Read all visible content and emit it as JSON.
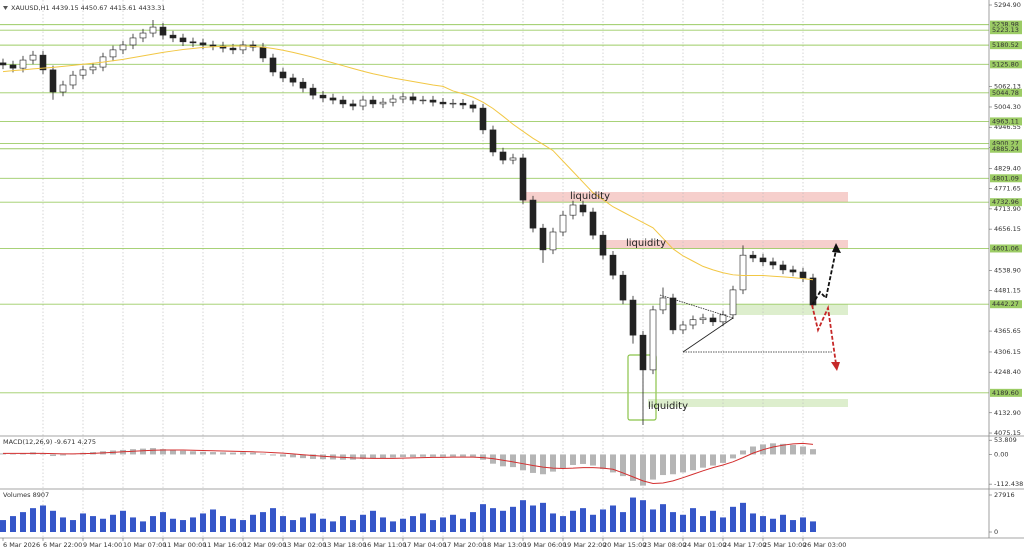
{
  "chart_data": [
    {
      "type": "candlestick",
      "title": "XAUUSD,H1  4439.15 4450.67 4415.61 4433.31",
      "categories": [
        "6 Mar 2026",
        null,
        null,
        null,
        "6 Mar 22:00",
        null,
        null,
        null,
        "9 Mar 14:00",
        null,
        null,
        null,
        "10 Mar 07:00",
        null,
        null,
        null,
        "11 Mar 00:00",
        null,
        null,
        null,
        "11 Mar 16:00",
        null,
        null,
        null,
        "12 Mar 09:00",
        null,
        null,
        null,
        "13 Mar 02:00",
        null,
        null,
        null,
        "13 Mar 18:00",
        null,
        null,
        null,
        "16 Mar 11:00",
        null,
        null,
        null,
        "17 Mar 04:00",
        null,
        null,
        null,
        "17 Mar 20:00",
        null,
        null,
        null,
        "18 Mar 13:00",
        null,
        null,
        null,
        "19 Mar 06:00",
        null,
        null,
        null,
        "19 Mar 22:00",
        null,
        null,
        null,
        "20 Mar 15:00",
        null,
        null,
        null,
        "23 Mar 08:00",
        null,
        null,
        null,
        "24 Mar 01:00",
        null,
        null,
        null,
        "24 Mar 17:00",
        null,
        null,
        null,
        "25 Mar 10:00",
        null,
        null,
        null,
        "26 Mar 03:00",
        null
      ],
      "open": [
        5130,
        5124,
        5115,
        5138,
        5152,
        5110,
        5047,
        5067,
        5095,
        5110,
        5118,
        5147,
        5167,
        5181,
        5201,
        5215,
        5232,
        5209,
        5201,
        5190,
        5187,
        5181,
        5178,
        5172,
        5167,
        5181,
        5175,
        5144,
        5104,
        5087,
        5075,
        5058,
        5038,
        5030,
        5024,
        5013,
        5007,
        5024,
        5013,
        5018,
        5027,
        5033,
        5024,
        5024,
        5018,
        5013,
        5015,
        5010,
        5001,
        4939,
        4876,
        4853,
        4859,
        4739,
        4659,
        4597,
        4648,
        4696,
        4725,
        4705,
        4639,
        4582,
        4525,
        4454,
        4354,
        4255,
        4426,
        4460,
        4369,
        4383,
        4398,
        4403,
        4392,
        4412,
        4483,
        4582,
        4574,
        4563,
        4554,
        4540,
        4534,
        4517
      ],
      "high": [
        5142,
        5136,
        5150,
        5164,
        5164,
        5122,
        5079,
        5107,
        5122,
        5130,
        5159,
        5179,
        5193,
        5213,
        5227,
        5252,
        5244,
        5221,
        5213,
        5202,
        5199,
        5193,
        5190,
        5184,
        5193,
        5193,
        5187,
        5156,
        5116,
        5099,
        5087,
        5070,
        5050,
        5042,
        5036,
        5025,
        5036,
        5036,
        5030,
        5039,
        5045,
        5045,
        5036,
        5036,
        5030,
        5027,
        5027,
        5022,
        5013,
        4951,
        4888,
        4871,
        4871,
        4751,
        4671,
        4660,
        4708,
        4737,
        4737,
        4717,
        4651,
        4594,
        4537,
        4466,
        4366,
        4438,
        4490,
        4472,
        4395,
        4410,
        4415,
        4415,
        4424,
        4495,
        4610,
        4594,
        4586,
        4575,
        4566,
        4552,
        4546,
        4529
      ],
      "low": [
        5112,
        5103,
        5103,
        5126,
        5098,
        5025,
        5035,
        5055,
        5083,
        5098,
        5106,
        5135,
        5155,
        5169,
        5189,
        5203,
        5197,
        5189,
        5178,
        5175,
        5169,
        5166,
        5160,
        5155,
        5155,
        5163,
        5132,
        5092,
        5075,
        5063,
        5046,
        5026,
        5018,
        5012,
        5001,
        4995,
        4995,
        5001,
        5001,
        5006,
        5015,
        5012,
        5012,
        5006,
        5001,
        5001,
        4998,
        4989,
        4927,
        4864,
        4841,
        4841,
        4727,
        4647,
        4560,
        4585,
        4636,
        4684,
        4693,
        4627,
        4570,
        4513,
        4442,
        4330,
        4098,
        4243,
        4414,
        4357,
        4357,
        4371,
        4386,
        4380,
        4380,
        4400,
        4471,
        4562,
        4551,
        4542,
        4528,
        4522,
        4505,
        4428
      ],
      "close": [
        5124,
        5115,
        5138,
        5152,
        5110,
        5047,
        5067,
        5095,
        5110,
        5118,
        5147,
        5167,
        5181,
        5201,
        5215,
        5232,
        5209,
        5201,
        5190,
        5187,
        5181,
        5178,
        5172,
        5167,
        5181,
        5175,
        5144,
        5104,
        5087,
        5075,
        5058,
        5038,
        5030,
        5024,
        5013,
        5007,
        5024,
        5013,
        5018,
        5027,
        5033,
        5024,
        5024,
        5018,
        5013,
        5015,
        5010,
        5001,
        4939,
        4876,
        4853,
        4859,
        4739,
        4659,
        4597,
        4648,
        4696,
        4725,
        4705,
        4639,
        4582,
        4525,
        4454,
        4354,
        4255,
        4426,
        4460,
        4369,
        4383,
        4398,
        4403,
        4392,
        4412,
        4483,
        4582,
        4574,
        4563,
        4554,
        4540,
        4534,
        4517,
        4440
      ],
      "series": [
        {
          "color": "#f2c744",
          "values": [
            5105,
            5108,
            5110,
            5113,
            5115,
            5117,
            5120,
            5123,
            5126,
            5129,
            5132,
            5136,
            5140,
            5145,
            5150,
            5155,
            5160,
            5164,
            5168,
            5171,
            5174,
            5176,
            5177,
            5178,
            5178,
            5177,
            5175,
            5171,
            5166,
            5160,
            5153,
            5146,
            5138,
            5130,
            5122,
            5114,
            5106,
            5099,
            5093,
            5087,
            5082,
            5077,
            5072,
            5067,
            5063,
            5050,
            5042,
            5032,
            5018,
            5000,
            4978,
            4955,
            4935,
            4915,
            4898,
            4880,
            4850,
            4820,
            4790,
            4760,
            4740,
            4720,
            4705,
            4690,
            4675,
            4660,
            4630,
            4600,
            4580,
            4565,
            4550,
            4540,
            4532,
            4526,
            4524,
            4524,
            4524,
            4522,
            4520,
            4518,
            4515,
            4512
          ]
        }
      ],
      "ylim": [
        4069.5,
        5300.6
      ],
      "yticks": [
        {
          "value": 5294.9,
          "label": "5294.90"
        },
        5062.13,
        {
          "value": 5004.3,
          "label": "5004.30"
        },
        4946.55,
        4888.76,
        {
          "value": 4829.4,
          "label": "4829.40"
        },
        4771.65,
        {
          "value": 4713.9,
          "label": "4713.90"
        },
        4656.15,
        {
          "value": 4538.9,
          "label": "4538.90"
        },
        4481.15,
        4365.65,
        4306.15,
        {
          "value": 4248.4,
          "label": "4248.40"
        },
        {
          "value": 4132.9,
          "label": "4132.90"
        },
        4075.15
      ],
      "levels": [
        5238.98,
        5223.13,
        5180.52,
        {
          "value": 5125.8,
          "label": "5125.80"
        },
        5044.78,
        4963.11,
        4900.27,
        4885.24,
        4801.09,
        4732.96,
        4601.06,
        4442.27,
        {
          "value": 4189.6,
          "label": "4189.60"
        }
      ],
      "level_color": "#9ccc65",
      "annotations": [
        "liquidity",
        "liquidity",
        "liquidity"
      ]
    },
    {
      "type": "bar",
      "title": "MACD(12,26,9) -9.671 4.275",
      "color": "#b5b5b5",
      "values": [
        4,
        2,
        5,
        8,
        3,
        -6,
        -4,
        2,
        6,
        9,
        12,
        15,
        17,
        20,
        22,
        24,
        20,
        17,
        14,
        12,
        10,
        9,
        8,
        7,
        8,
        7,
        3,
        -4,
        -8,
        -11,
        -14,
        -17,
        -18,
        -19,
        -20,
        -20,
        -17,
        -16,
        -14,
        -12,
        -10,
        -10,
        -9,
        -9,
        -9,
        -8,
        -8,
        -9,
        -20,
        -35,
        -45,
        -48,
        -60,
        -70,
        -75,
        -65,
        -52,
        -40,
        -36,
        -42,
        -55,
        -68,
        -82,
        -100,
        -118,
        -95,
        -78,
        -75,
        -68,
        -60,
        -50,
        -42,
        -32,
        -15,
        15,
        30,
        38,
        42,
        40,
        36,
        30,
        20
      ],
      "series": [
        {
          "color": "#d32f2f",
          "values": [
            4,
            4,
            4,
            4,
            4,
            3,
            2,
            2,
            3,
            4,
            6,
            8,
            10,
            12,
            14,
            16,
            17,
            17,
            17,
            16,
            15,
            14,
            13,
            12,
            11,
            10,
            9,
            7,
            5,
            2,
            -1,
            -4,
            -7,
            -9,
            -11,
            -13,
            -14,
            -15,
            -15,
            -15,
            -14,
            -13,
            -12,
            -11,
            -11,
            -10,
            -10,
            -10,
            -12,
            -16,
            -22,
            -28,
            -35,
            -42,
            -48,
            -52,
            -53,
            -52,
            -50,
            -50,
            -52,
            -56,
            -70,
            -85,
            -100,
            -110,
            -108,
            -100,
            -88,
            -75,
            -62,
            -50,
            -40,
            -28,
            -12,
            5,
            18,
            28,
            35,
            40,
            42,
            38
          ]
        }
      ],
      "ylim": [
        -127,
        66
      ],
      "yticks": [
        53.809,
        {
          "value": 0,
          "label": "0.00"
        },
        -112.438
      ]
    },
    {
      "type": "bar",
      "title": "Volumes 8907",
      "color": "#3556c8",
      "values": [
        9000,
        12000,
        15000,
        18000,
        20000,
        16000,
        11000,
        9000,
        14000,
        12000,
        10000,
        13000,
        16000,
        11000,
        8000,
        12000,
        15000,
        10000,
        9000,
        11000,
        14000,
        17000,
        12000,
        10000,
        9000,
        13000,
        15000,
        18000,
        12000,
        9000,
        11000,
        14000,
        10000,
        8000,
        12000,
        9000,
        13000,
        16000,
        11000,
        8000,
        10000,
        12000,
        14000,
        9000,
        11000,
        13000,
        10000,
        15000,
        21000,
        18000,
        16000,
        19000,
        24000,
        20000,
        22000,
        14000,
        12000,
        16000,
        18000,
        13000,
        17000,
        20000,
        15000,
        26000,
        24000,
        17000,
        21000,
        15000,
        13000,
        18000,
        12000,
        16000,
        11000,
        19000,
        22000,
        14000,
        12000,
        10000,
        13000,
        9000,
        11000,
        8000
      ],
      "ylim": [
        -3770,
        31686
      ],
      "yticks": [
        27916,
        0
      ]
    }
  ]
}
